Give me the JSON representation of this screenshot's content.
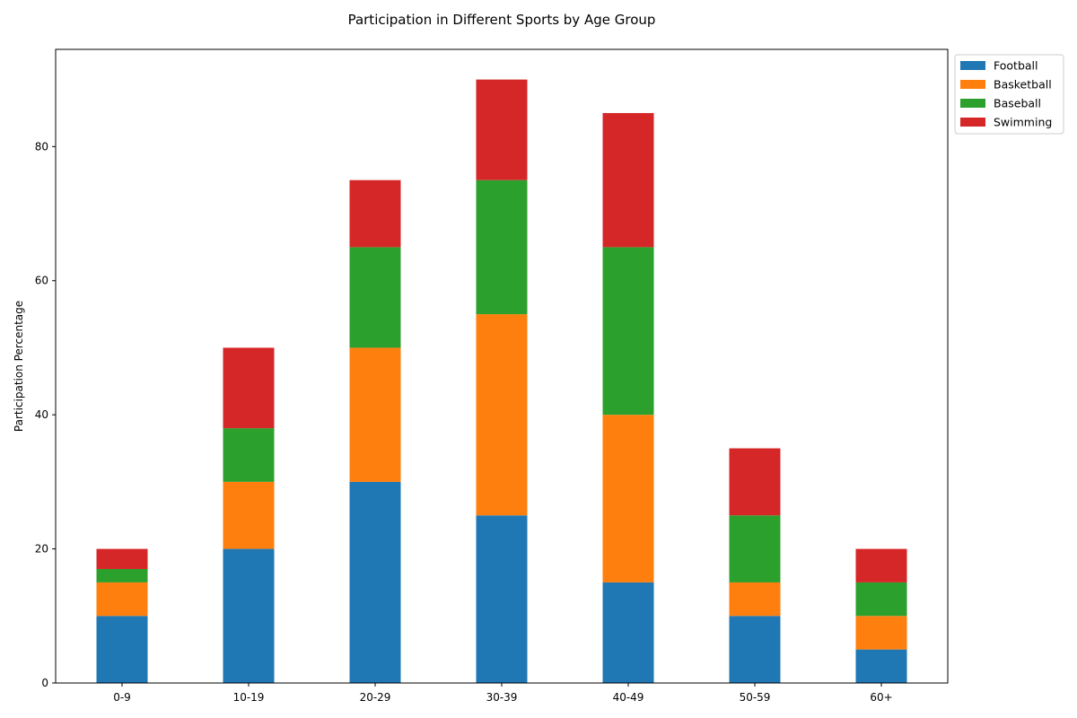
{
  "chart_data": {
    "type": "bar",
    "stacked": true,
    "title": "Participation in Different Sports by Age Group",
    "xlabel": "",
    "ylabel": "Participation Percentage",
    "categories": [
      "0-9",
      "10-19",
      "20-29",
      "30-39",
      "40-49",
      "50-59",
      "60+"
    ],
    "series": [
      {
        "name": "Football",
        "color": "#1f77b4",
        "values": [
          10,
          20,
          30,
          25,
          15,
          10,
          5
        ]
      },
      {
        "name": "Basketball",
        "color": "#ff7f0e",
        "values": [
          5,
          10,
          20,
          30,
          25,
          5,
          5
        ]
      },
      {
        "name": "Baseball",
        "color": "#2ca02c",
        "values": [
          2,
          8,
          15,
          20,
          25,
          10,
          5
        ]
      },
      {
        "name": "Swimming",
        "color": "#d62728",
        "values": [
          3,
          12,
          10,
          15,
          20,
          10,
          5
        ]
      }
    ],
    "ylim": [
      0,
      94.5
    ],
    "yticks": [
      0,
      20,
      40,
      60,
      80
    ],
    "grid": false,
    "legend": "upper-right-outside"
  }
}
